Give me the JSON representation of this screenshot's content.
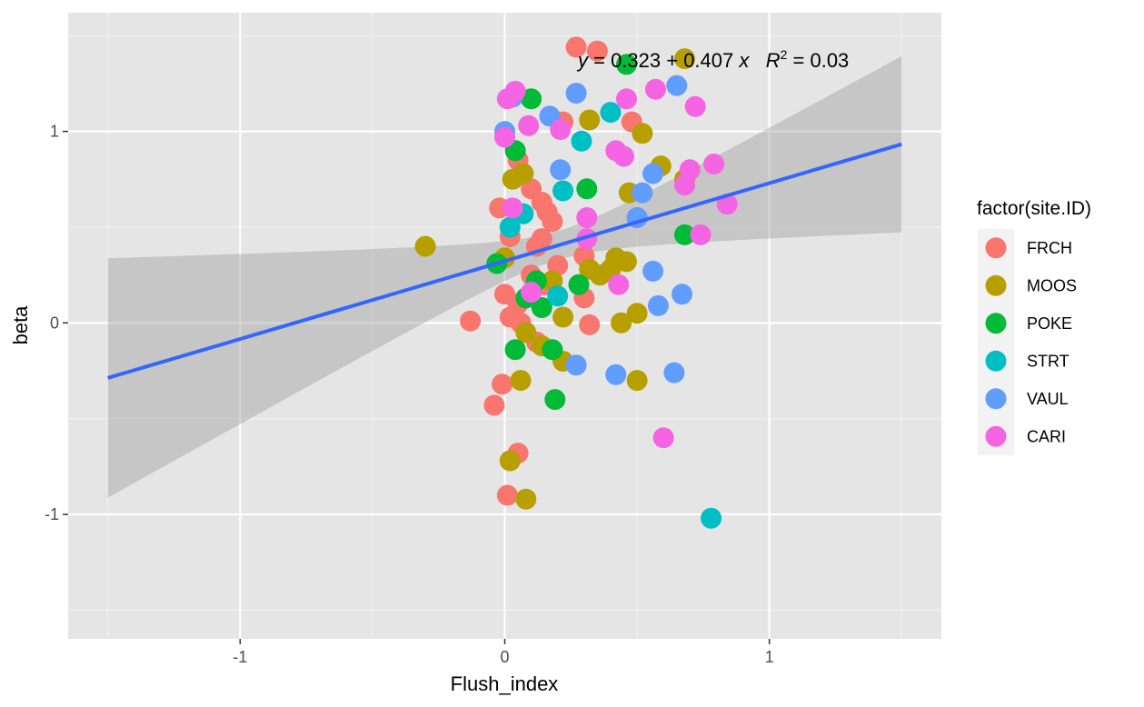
{
  "chart_data": {
    "type": "scatter",
    "title": "",
    "xlabel": "Flush_index",
    "ylabel": "beta",
    "xlim": [
      -1.65,
      1.65
    ],
    "ylim": [
      -1.65,
      1.62
    ],
    "x_ticks": [
      -1,
      0,
      1
    ],
    "y_ticks": [
      -1,
      0,
      1
    ],
    "x_tick_labels": [
      "-1",
      "0",
      "1"
    ],
    "y_tick_labels": [
      "-1",
      "0",
      "1"
    ],
    "grid": true,
    "background": "#e5e5e5",
    "legend": {
      "title": "factor(site.ID)",
      "placement": "right"
    },
    "annotation": {
      "y_symbol": "y",
      "eq_part1": " = 0.323 + 0.407 ",
      "x_symbol": "x",
      "r_symbol": "R",
      "r_exp": "2",
      "r_part2": " = 0.03"
    },
    "regression": {
      "intercept": 0.323,
      "slope": 0.407,
      "x_range": [
        -1.5,
        1.5
      ],
      "ci_lower": [
        -0.91,
        0.47
      ],
      "ci_upper": [
        0.34,
        1.39
      ],
      "color": "#3366ff",
      "ci_color": "#999999"
    },
    "series": [
      {
        "name": "FRCH",
        "color": "#F8766D",
        "points": [
          [
            0.27,
            1.44
          ],
          [
            0.35,
            1.42
          ],
          [
            0.22,
            1.05
          ],
          [
            0.48,
            1.05
          ],
          [
            0.05,
            0.85
          ],
          [
            0.1,
            0.7
          ],
          [
            0.14,
            0.63
          ],
          [
            0.16,
            0.58
          ],
          [
            0.18,
            0.53
          ],
          [
            -0.02,
            0.6
          ],
          [
            0.02,
            0.45
          ],
          [
            0.14,
            0.44
          ],
          [
            0.12,
            0.4
          ],
          [
            0.2,
            0.3
          ],
          [
            0.3,
            0.35
          ],
          [
            0.1,
            0.25
          ],
          [
            0.15,
            0.2
          ],
          [
            0.0,
            0.15
          ],
          [
            0.05,
            0.1
          ],
          [
            0.3,
            0.13
          ],
          [
            0.02,
            0.03
          ],
          [
            0.06,
            0.0
          ],
          [
            -0.13,
            0.01
          ],
          [
            0.32,
            -0.01
          ],
          [
            0.12,
            -0.1
          ],
          [
            -0.01,
            -0.32
          ],
          [
            -0.04,
            -0.43
          ],
          [
            0.05,
            -0.68
          ],
          [
            0.01,
            -0.9
          ],
          [
            0.5,
            0.55
          ]
        ]
      },
      {
        "name": "MOOS",
        "color": "#B79F00",
        "points": [
          [
            0.68,
            1.38
          ],
          [
            0.32,
            1.06
          ],
          [
            0.52,
            0.99
          ],
          [
            0.59,
            0.82
          ],
          [
            0.07,
            0.78
          ],
          [
            0.03,
            0.75
          ],
          [
            0.68,
            0.75
          ],
          [
            0.47,
            0.68
          ],
          [
            -0.3,
            0.4
          ],
          [
            0.42,
            0.34
          ],
          [
            0.46,
            0.32
          ],
          [
            0.32,
            0.28
          ],
          [
            0.36,
            0.25
          ],
          [
            0.4,
            0.28
          ],
          [
            0.18,
            0.22
          ],
          [
            0.0,
            0.34
          ],
          [
            0.22,
            0.03
          ],
          [
            0.44,
            0.0
          ],
          [
            0.5,
            0.05
          ],
          [
            0.08,
            -0.05
          ],
          [
            0.14,
            -0.12
          ],
          [
            0.22,
            -0.2
          ],
          [
            0.06,
            -0.3
          ],
          [
            0.5,
            -0.3
          ],
          [
            0.02,
            -0.72
          ],
          [
            0.08,
            -0.92
          ]
        ]
      },
      {
        "name": "POKE",
        "color": "#00BA38",
        "points": [
          [
            0.46,
            1.35
          ],
          [
            0.1,
            1.17
          ],
          [
            0.04,
            0.9
          ],
          [
            0.31,
            0.7
          ],
          [
            0.68,
            0.46
          ],
          [
            -0.03,
            0.31
          ],
          [
            0.28,
            0.2
          ],
          [
            0.08,
            0.13
          ],
          [
            0.14,
            0.08
          ],
          [
            0.04,
            -0.14
          ],
          [
            0.18,
            -0.14
          ],
          [
            0.19,
            -0.4
          ],
          [
            0.12,
            0.22
          ]
        ]
      },
      {
        "name": "STRT",
        "color": "#00BFC4",
        "points": [
          [
            0.4,
            1.1
          ],
          [
            0.29,
            0.95
          ],
          [
            0.22,
            0.69
          ],
          [
            0.07,
            0.57
          ],
          [
            0.02,
            0.5
          ],
          [
            0.2,
            0.14
          ],
          [
            0.78,
            -1.02
          ]
        ]
      },
      {
        "name": "VAUL",
        "color": "#619CFF",
        "points": [
          [
            0.27,
            1.2
          ],
          [
            0.65,
            1.24
          ],
          [
            0.03,
            1.18
          ],
          [
            0.17,
            1.08
          ],
          [
            0.0,
            1.0
          ],
          [
            0.21,
            0.8
          ],
          [
            0.56,
            0.78
          ],
          [
            0.52,
            0.68
          ],
          [
            0.5,
            0.55
          ],
          [
            0.56,
            0.27
          ],
          [
            0.67,
            0.15
          ],
          [
            0.58,
            0.09
          ],
          [
            0.27,
            -0.22
          ],
          [
            0.42,
            -0.27
          ],
          [
            0.64,
            -0.26
          ]
        ]
      },
      {
        "name": "CARI",
        "color": "#F564E3",
        "points": [
          [
            0.04,
            1.21
          ],
          [
            0.01,
            1.17
          ],
          [
            0.57,
            1.22
          ],
          [
            0.46,
            1.17
          ],
          [
            0.72,
            1.13
          ],
          [
            0.09,
            1.03
          ],
          [
            0.21,
            1.01
          ],
          [
            0.42,
            0.9
          ],
          [
            0.45,
            0.87
          ],
          [
            0.79,
            0.83
          ],
          [
            0.7,
            0.8
          ],
          [
            0.68,
            0.72
          ],
          [
            0.84,
            0.62
          ],
          [
            0.03,
            0.6
          ],
          [
            0.31,
            0.55
          ],
          [
            0.74,
            0.46
          ],
          [
            0.31,
            0.44
          ],
          [
            0.43,
            0.2
          ],
          [
            0.1,
            0.16
          ],
          [
            0.6,
            -0.6
          ],
          [
            0.0,
            0.97
          ]
        ]
      }
    ]
  }
}
